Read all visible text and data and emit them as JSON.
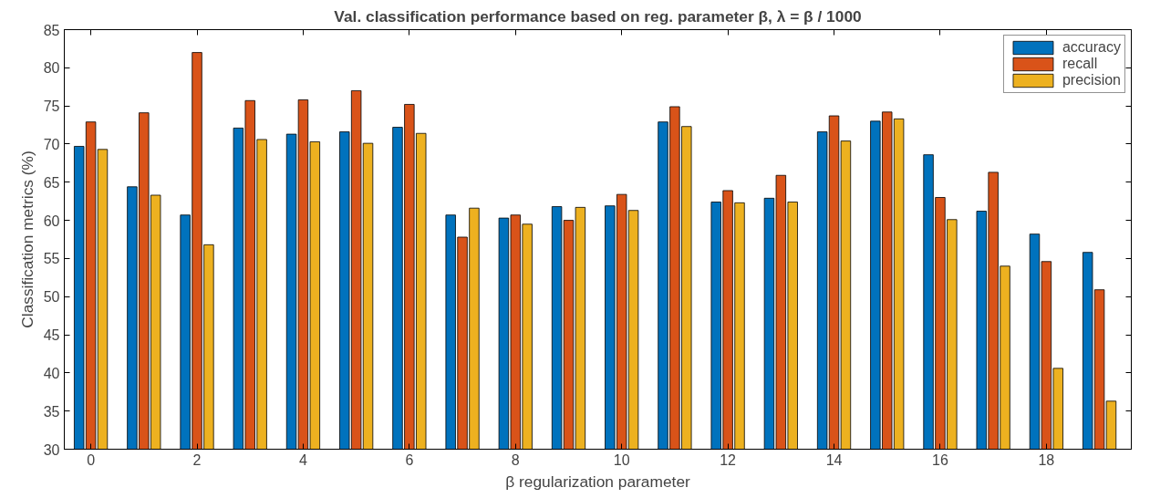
{
  "chart_data": {
    "type": "bar",
    "title": "Val. classification performance based on reg. parameter β, λ = β / 1000",
    "xlabel": "β regularization parameter",
    "ylabel": "Classification metrics (%)",
    "x": [
      0,
      1,
      2,
      3,
      4,
      5,
      6,
      7,
      8,
      9,
      10,
      11,
      12,
      13,
      14,
      15,
      16,
      17,
      18,
      19
    ],
    "series": [
      {
        "name": "accuracy",
        "color": "#0072bd",
        "values": [
          69.7,
          64.4,
          60.7,
          72.1,
          71.3,
          71.6,
          72.2,
          60.7,
          60.3,
          61.8,
          61.9,
          72.9,
          62.4,
          62.9,
          71.6,
          73.0,
          68.6,
          61.2,
          58.2,
          55.8
        ]
      },
      {
        "name": "recall",
        "color": "#d95319",
        "values": [
          72.9,
          74.1,
          82.0,
          75.7,
          75.8,
          77.0,
          75.2,
          57.8,
          60.7,
          60.0,
          63.4,
          74.9,
          63.9,
          65.9,
          73.7,
          74.2,
          63.0,
          66.3,
          54.6,
          50.9
        ]
      },
      {
        "name": "precision",
        "color": "#edb120",
        "values": [
          69.3,
          63.3,
          56.8,
          70.6,
          70.3,
          70.1,
          71.4,
          61.6,
          59.5,
          61.7,
          61.3,
          72.3,
          62.3,
          62.4,
          70.4,
          73.3,
          60.1,
          54.0,
          40.6,
          36.3
        ]
      }
    ],
    "xlim": [
      -0.5,
      19.6
    ],
    "xticks": [
      0,
      2,
      4,
      6,
      8,
      10,
      12,
      14,
      16,
      18
    ],
    "ylim": [
      30,
      85
    ],
    "yticks": [
      30,
      35,
      40,
      45,
      50,
      55,
      60,
      65,
      70,
      75,
      80,
      85
    ],
    "grid": false,
    "legend": "top right"
  }
}
